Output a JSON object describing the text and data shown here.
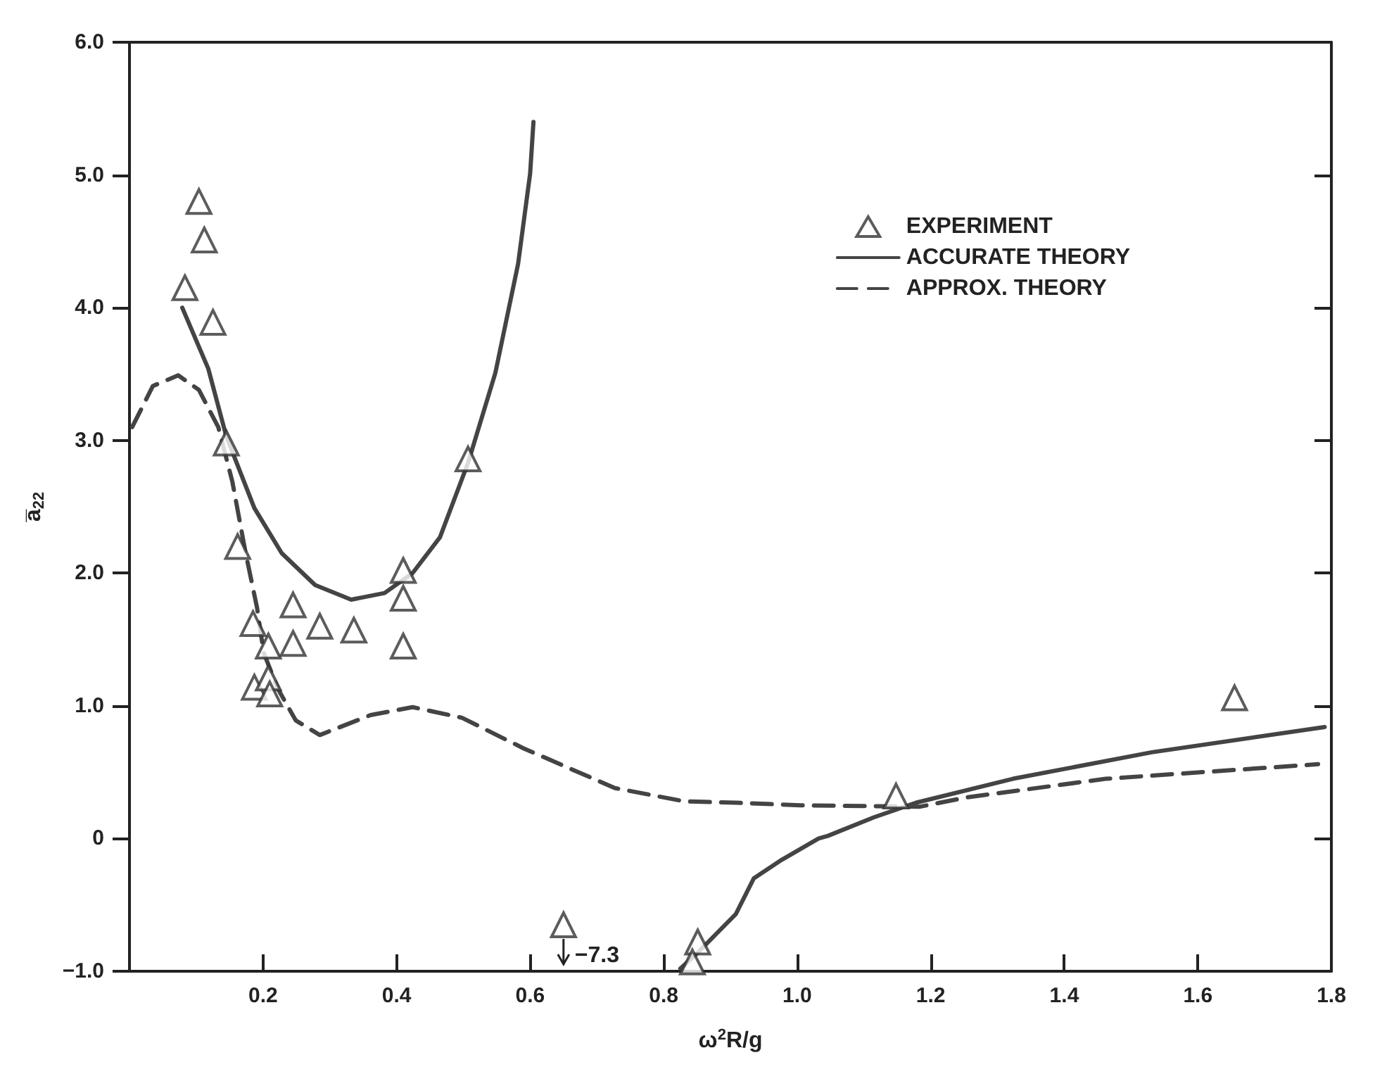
{
  "chart_data": {
    "type": "scatter",
    "xlabel": "ω$^{2}$R/g",
    "ylabel": "a̅$_{22}$",
    "xlim": [
      0,
      1.8
    ],
    "xticks": [
      0.2,
      0.4,
      0.6,
      0.8,
      {
        "value": 1,
        "label": "1.0"
      },
      1.2,
      1.4,
      1.6,
      1.8
    ],
    "ylim": [
      -1,
      6
    ],
    "yticks": [
      {
        "value": -1,
        "label": "−1.0"
      },
      0,
      {
        "value": 1,
        "label": "1.0"
      },
      {
        "value": 2,
        "label": "2.0"
      },
      {
        "value": 3,
        "label": "3.0"
      },
      {
        "value": 4,
        "label": "4.0"
      },
      {
        "value": 5,
        "label": "5.0"
      },
      {
        "value": 6,
        "label": "6.0"
      }
    ],
    "grid": false,
    "legend": "top right",
    "annotations": [
      {
        "text": "−7.3",
        "x": 0.65,
        "y": -0.65
      }
    ],
    "series": [
      {
        "name": "EXPERIMENT",
        "marker": "triangle",
        "color": "#333333",
        "x": [
          0.104,
          0.112,
          0.083,
          0.125,
          0.145,
          0.162,
          0.185,
          0.208,
          0.187,
          0.208,
          0.21,
          0.245,
          0.245,
          0.285,
          0.336,
          0.41,
          0.41,
          0.41,
          0.507,
          0.65,
          0.851,
          0.843,
          1.148,
          1.655
        ],
        "values": [
          4.8,
          4.51,
          4.15,
          3.89,
          2.98,
          2.2,
          1.62,
          1.45,
          1.14,
          1.21,
          1.09,
          1.76,
          1.47,
          1.6,
          1.57,
          2.02,
          1.81,
          1.45,
          2.86,
          -0.65,
          -0.78,
          -0.93,
          0.32,
          1.06
        ]
      },
      {
        "name": "ACCURATE THEORY",
        "type": "line",
        "marker": "none",
        "line_style": "solid",
        "color": "#444444",
        "x": [
          0.079,
          0.118,
          0.145,
          0.187,
          0.228,
          0.278,
          0.332,
          0.382,
          0.424,
          0.465,
          0.507,
          0.548,
          0.582,
          0.6,
          0.605,
          null,
          0.825,
          0.851,
          0.908,
          0.935,
          0.977,
          1.032,
          1.046,
          1.115,
          1.178,
          1.323,
          1.531,
          1.79
        ],
        "values": [
          4.0,
          3.54,
          3.03,
          2.49,
          2.15,
          1.91,
          1.8,
          1.85,
          2.0,
          2.27,
          2.83,
          3.51,
          4.33,
          5.01,
          5.4,
          null,
          -0.98,
          -0.86,
          -0.57,
          -0.3,
          -0.16,
          0.0,
          0.02,
          0.16,
          0.27,
          0.45,
          0.65,
          0.84
        ]
      },
      {
        "name": "APPROX. THEORY",
        "type": "line",
        "marker": "none",
        "line_style": "dashed",
        "color": "#444444",
        "x": [
          0.004,
          0.035,
          0.073,
          0.104,
          0.133,
          0.154,
          0.174,
          0.191,
          0.201,
          0.222,
          0.249,
          0.285,
          0.361,
          0.424,
          0.498,
          0.59,
          0.727,
          0.831,
          0.908,
          1.005,
          1.184,
          1.254,
          1.462,
          1.78
        ],
        "values": [
          3.1,
          3.41,
          3.49,
          3.38,
          3.1,
          2.69,
          2.15,
          1.74,
          1.4,
          1.13,
          0.89,
          0.78,
          0.93,
          0.99,
          0.91,
          0.68,
          0.38,
          0.28,
          0.27,
          0.25,
          0.24,
          0.31,
          0.45,
          0.56
        ]
      }
    ]
  }
}
